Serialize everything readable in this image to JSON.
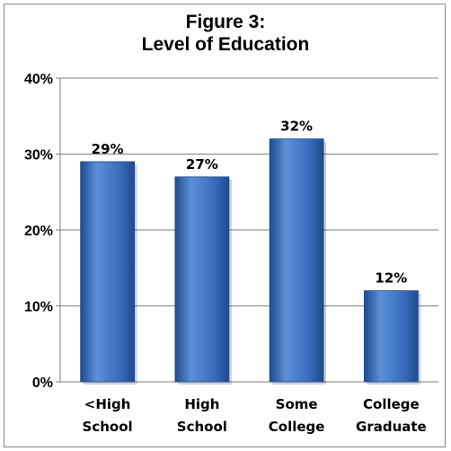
{
  "chart_data": {
    "type": "bar",
    "title_lines": [
      "Figure 3:",
      "Level of Education"
    ],
    "categories": [
      [
        "<High",
        "School"
      ],
      [
        "High",
        "School"
      ],
      [
        "Some",
        "College"
      ],
      [
        "College",
        "Graduate"
      ]
    ],
    "values": [
      29,
      27,
      32,
      12
    ],
    "data_labels": [
      "29%",
      "27%",
      "32%",
      "12%"
    ],
    "ylim": [
      0,
      40
    ],
    "yticks": [
      0,
      10,
      20,
      30,
      40
    ],
    "ytick_labels": [
      "0%",
      "10%",
      "20%",
      "30%",
      "40%"
    ],
    "grid": true,
    "legend": "none",
    "colors": {
      "bar_light": "#5b8fd6",
      "bar_mid": "#3a6fc0",
      "bar_dark": "#204b8e",
      "grid": "#7f7f7f",
      "axis": "#7f7f7f"
    }
  }
}
